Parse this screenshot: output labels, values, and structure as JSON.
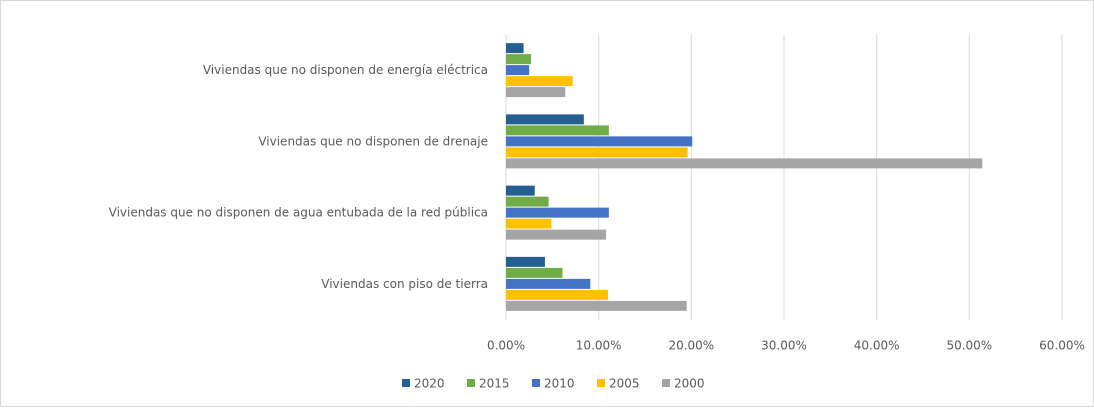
{
  "chart_data": {
    "type": "hbar",
    "categories": [
      "Viviendas que no disponen de energía eléctrica",
      "Viviendas que no disponen de drenaje",
      "Viviendas que no disponen de agua entubada de la red pública",
      "Viviendas con piso de tierra"
    ],
    "series": [
      {
        "name": "2020",
        "color": "#255e91",
        "values": [
          1.9,
          8.4,
          3.1,
          4.2
        ]
      },
      {
        "name": "2015",
        "color": "#70ad47",
        "values": [
          2.7,
          11.1,
          4.6,
          6.1
        ]
      },
      {
        "name": "2010",
        "color": "#4472c4",
        "values": [
          2.5,
          20.1,
          11.1,
          9.1
        ]
      },
      {
        "name": "2005",
        "color": "#ffc000",
        "values": [
          7.2,
          19.6,
          4.9,
          11.0
        ]
      },
      {
        "name": "2000",
        "color": "#a5a5a5",
        "values": [
          6.4,
          51.4,
          10.8,
          19.5
        ]
      }
    ],
    "xlim": [
      0,
      60
    ],
    "xticks": [
      {
        "value": 0,
        "label": "0.00%"
      },
      {
        "value": 10,
        "label": "10.00%"
      },
      {
        "value": 20,
        "label": "20.00%"
      },
      {
        "value": 30,
        "label": "30.00%"
      },
      {
        "value": 40,
        "label": "40.00%"
      },
      {
        "value": 50,
        "label": "50.00%"
      },
      {
        "value": 60,
        "label": "60.00%"
      }
    ],
    "grid": true,
    "legend": "bottom"
  }
}
